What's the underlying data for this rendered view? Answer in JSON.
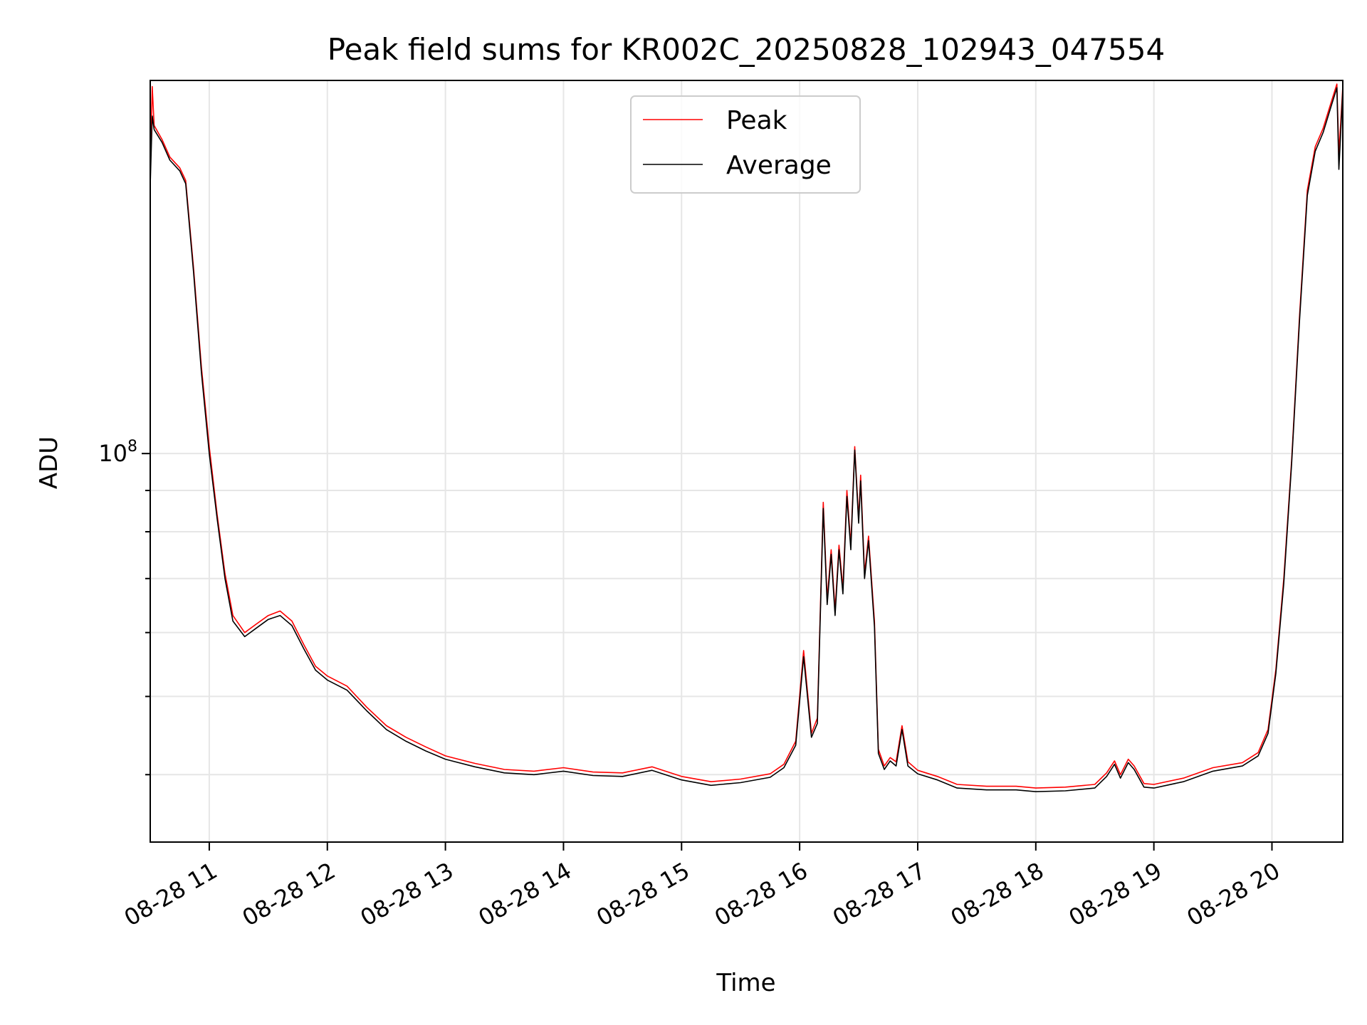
{
  "chart_data": {
    "type": "line",
    "title": "Peak field sums for KR002C_20250828_102943_047554",
    "xlabel": "Time",
    "ylabel": "ADU",
    "yscale": "log",
    "y_tick_major": {
      "label_base": "10",
      "label_exp": "8",
      "value": 100000000
    },
    "y_minor_ticks": [
      40000000,
      50000000,
      60000000,
      70000000,
      80000000,
      90000000
    ],
    "xlim": [
      "2025-08-28 10:30",
      "2025-08-28 20:36"
    ],
    "ylim": [
      33000000,
      290000000
    ],
    "x_ticks": [
      {
        "value": "2025-08-28 11:00",
        "label": "08-28 11"
      },
      {
        "value": "2025-08-28 12:00",
        "label": "08-28 12"
      },
      {
        "value": "2025-08-28 13:00",
        "label": "08-28 13"
      },
      {
        "value": "2025-08-28 14:00",
        "label": "08-28 14"
      },
      {
        "value": "2025-08-28 15:00",
        "label": "08-28 15"
      },
      {
        "value": "2025-08-28 16:00",
        "label": "08-28 16"
      },
      {
        "value": "2025-08-28 17:00",
        "label": "08-28 17"
      },
      {
        "value": "2025-08-28 18:00",
        "label": "08-28 18"
      },
      {
        "value": "2025-08-28 19:00",
        "label": "08-28 19"
      },
      {
        "value": "2025-08-28 20:00",
        "label": "08-28 20"
      }
    ],
    "grid": true,
    "legend_position": "top-center",
    "series": [
      {
        "name": "Peak",
        "color": "#ff0000",
        "points": [
          [
            "2025-08-28 10:30",
            220000000
          ],
          [
            "2025-08-28 10:31",
            285000000
          ],
          [
            "2025-08-28 10:32",
            255000000
          ],
          [
            "2025-08-28 10:36",
            245000000
          ],
          [
            "2025-08-28 10:40",
            233000000
          ],
          [
            "2025-08-28 10:45",
            226000000
          ],
          [
            "2025-08-28 10:48",
            218000000
          ],
          [
            "2025-08-28 10:52",
            170000000
          ],
          [
            "2025-08-28 10:56",
            128000000
          ],
          [
            "2025-08-28 11:00",
            102000000
          ],
          [
            "2025-08-28 11:04",
            84000000
          ],
          [
            "2025-08-28 11:08",
            71000000
          ],
          [
            "2025-08-28 11:12",
            63000000
          ],
          [
            "2025-08-28 11:18",
            60000000
          ],
          [
            "2025-08-28 11:24",
            61500000
          ],
          [
            "2025-08-28 11:30",
            63000000
          ],
          [
            "2025-08-28 11:36",
            63800000
          ],
          [
            "2025-08-28 11:42",
            62000000
          ],
          [
            "2025-08-28 11:48",
            58000000
          ],
          [
            "2025-08-28 11:54",
            54500000
          ],
          [
            "2025-08-28 12:00",
            53000000
          ],
          [
            "2025-08-28 12:10",
            51500000
          ],
          [
            "2025-08-28 12:20",
            48500000
          ],
          [
            "2025-08-28 12:30",
            46000000
          ],
          [
            "2025-08-28 12:40",
            44500000
          ],
          [
            "2025-08-28 12:50",
            43300000
          ],
          [
            "2025-08-28 13:00",
            42200000
          ],
          [
            "2025-08-28 13:15",
            41300000
          ],
          [
            "2025-08-28 13:30",
            40600000
          ],
          [
            "2025-08-28 13:45",
            40400000
          ],
          [
            "2025-08-28 14:00",
            40800000
          ],
          [
            "2025-08-28 14:15",
            40300000
          ],
          [
            "2025-08-28 14:30",
            40200000
          ],
          [
            "2025-08-28 14:45",
            40900000
          ],
          [
            "2025-08-28 15:00",
            39800000
          ],
          [
            "2025-08-28 15:15",
            39200000
          ],
          [
            "2025-08-28 15:30",
            39500000
          ],
          [
            "2025-08-28 15:45",
            40100000
          ],
          [
            "2025-08-28 15:52",
            41200000
          ],
          [
            "2025-08-28 15:58",
            44000000
          ],
          [
            "2025-08-28 16:02",
            57000000
          ],
          [
            "2025-08-28 16:06",
            45000000
          ],
          [
            "2025-08-28 16:09",
            47000000
          ],
          [
            "2025-08-28 16:12",
            87000000
          ],
          [
            "2025-08-28 16:14",
            66000000
          ],
          [
            "2025-08-28 16:16",
            76000000
          ],
          [
            "2025-08-28 16:18",
            64000000
          ],
          [
            "2025-08-28 16:20",
            77000000
          ],
          [
            "2025-08-28 16:22",
            68000000
          ],
          [
            "2025-08-28 16:24",
            90000000
          ],
          [
            "2025-08-28 16:26",
            77000000
          ],
          [
            "2025-08-28 16:28",
            102000000
          ],
          [
            "2025-08-28 16:30",
            83000000
          ],
          [
            "2025-08-28 16:31",
            94000000
          ],
          [
            "2025-08-28 16:33",
            71000000
          ],
          [
            "2025-08-28 16:35",
            79000000
          ],
          [
            "2025-08-28 16:38",
            62000000
          ],
          [
            "2025-08-28 16:40",
            43000000
          ],
          [
            "2025-08-28 16:43",
            41000000
          ],
          [
            "2025-08-28 16:46",
            42000000
          ],
          [
            "2025-08-28 16:49",
            41500000
          ],
          [
            "2025-08-28 16:52",
            46000000
          ],
          [
            "2025-08-28 16:55",
            41500000
          ],
          [
            "2025-08-28 17:00",
            40500000
          ],
          [
            "2025-08-28 17:10",
            39800000
          ],
          [
            "2025-08-28 17:20",
            38900000
          ],
          [
            "2025-08-28 17:35",
            38700000
          ],
          [
            "2025-08-28 17:50",
            38700000
          ],
          [
            "2025-08-28 18:00",
            38500000
          ],
          [
            "2025-08-28 18:15",
            38600000
          ],
          [
            "2025-08-28 18:30",
            38900000
          ],
          [
            "2025-08-28 18:36",
            40200000
          ],
          [
            "2025-08-28 18:40",
            41600000
          ],
          [
            "2025-08-28 18:43",
            40000000
          ],
          [
            "2025-08-28 18:47",
            41800000
          ],
          [
            "2025-08-28 18:50",
            41000000
          ],
          [
            "2025-08-28 18:55",
            39000000
          ],
          [
            "2025-08-28 19:00",
            38900000
          ],
          [
            "2025-08-28 19:15",
            39600000
          ],
          [
            "2025-08-28 19:30",
            40800000
          ],
          [
            "2025-08-28 19:45",
            41400000
          ],
          [
            "2025-08-28 19:53",
            42600000
          ],
          [
            "2025-08-28 19:58",
            45500000
          ],
          [
            "2025-08-28 20:02",
            54000000
          ],
          [
            "2025-08-28 20:06",
            70000000
          ],
          [
            "2025-08-28 20:10",
            98000000
          ],
          [
            "2025-08-28 20:14",
            148000000
          ],
          [
            "2025-08-28 20:18",
            212000000
          ],
          [
            "2025-08-28 20:22",
            240000000
          ],
          [
            "2025-08-28 20:26",
            253000000
          ],
          [
            "2025-08-28 20:30",
            272000000
          ],
          [
            "2025-08-28 20:33",
            287000000
          ],
          [
            "2025-08-28 20:34",
            235000000
          ],
          [
            "2025-08-28 20:36",
            285000000
          ]
        ]
      },
      {
        "name": "Average",
        "color": "#000000",
        "points": [
          [
            "2025-08-28 10:30",
            215000000
          ],
          [
            "2025-08-28 10:31",
            262000000
          ],
          [
            "2025-08-28 10:32",
            252000000
          ],
          [
            "2025-08-28 10:36",
            243000000
          ],
          [
            "2025-08-28 10:40",
            231000000
          ],
          [
            "2025-08-28 10:45",
            224000000
          ],
          [
            "2025-08-28 10:48",
            216000000
          ],
          [
            "2025-08-28 10:52",
            168000000
          ],
          [
            "2025-08-28 10:56",
            126000000
          ],
          [
            "2025-08-28 11:00",
            100000000
          ],
          [
            "2025-08-28 11:04",
            83000000
          ],
          [
            "2025-08-28 11:08",
            70000000
          ],
          [
            "2025-08-28 11:12",
            62000000
          ],
          [
            "2025-08-28 11:18",
            59300000
          ],
          [
            "2025-08-28 11:24",
            60800000
          ],
          [
            "2025-08-28 11:30",
            62300000
          ],
          [
            "2025-08-28 11:36",
            63000000
          ],
          [
            "2025-08-28 11:42",
            61200000
          ],
          [
            "2025-08-28 11:48",
            57300000
          ],
          [
            "2025-08-28 11:54",
            53900000
          ],
          [
            "2025-08-28 12:00",
            52400000
          ],
          [
            "2025-08-28 12:10",
            50900000
          ],
          [
            "2025-08-28 12:20",
            48000000
          ],
          [
            "2025-08-28 12:30",
            45500000
          ],
          [
            "2025-08-28 12:40",
            44000000
          ],
          [
            "2025-08-28 12:50",
            42800000
          ],
          [
            "2025-08-28 13:00",
            41800000
          ],
          [
            "2025-08-28 13:15",
            40900000
          ],
          [
            "2025-08-28 13:30",
            40200000
          ],
          [
            "2025-08-28 13:45",
            40000000
          ],
          [
            "2025-08-28 14:00",
            40400000
          ],
          [
            "2025-08-28 14:15",
            39900000
          ],
          [
            "2025-08-28 14:30",
            39800000
          ],
          [
            "2025-08-28 14:45",
            40500000
          ],
          [
            "2025-08-28 15:00",
            39400000
          ],
          [
            "2025-08-28 15:15",
            38800000
          ],
          [
            "2025-08-28 15:30",
            39100000
          ],
          [
            "2025-08-28 15:45",
            39700000
          ],
          [
            "2025-08-28 15:52",
            40800000
          ],
          [
            "2025-08-28 15:58",
            43500000
          ],
          [
            "2025-08-28 16:02",
            56000000
          ],
          [
            "2025-08-28 16:06",
            44500000
          ],
          [
            "2025-08-28 16:09",
            46300000
          ],
          [
            "2025-08-28 16:12",
            85500000
          ],
          [
            "2025-08-28 16:14",
            65000000
          ],
          [
            "2025-08-28 16:16",
            75000000
          ],
          [
            "2025-08-28 16:18",
            63000000
          ],
          [
            "2025-08-28 16:20",
            76000000
          ],
          [
            "2025-08-28 16:22",
            67000000
          ],
          [
            "2025-08-28 16:24",
            88500000
          ],
          [
            "2025-08-28 16:26",
            76000000
          ],
          [
            "2025-08-28 16:28",
            101000000
          ],
          [
            "2025-08-28 16:30",
            82000000
          ],
          [
            "2025-08-28 16:31",
            92500000
          ],
          [
            "2025-08-28 16:33",
            70000000
          ],
          [
            "2025-08-28 16:35",
            78000000
          ],
          [
            "2025-08-28 16:38",
            61000000
          ],
          [
            "2025-08-28 16:40",
            42500000
          ],
          [
            "2025-08-28 16:43",
            40600000
          ],
          [
            "2025-08-28 16:46",
            41600000
          ],
          [
            "2025-08-28 16:49",
            41000000
          ],
          [
            "2025-08-28 16:52",
            45500000
          ],
          [
            "2025-08-28 16:55",
            41000000
          ],
          [
            "2025-08-28 17:00",
            40100000
          ],
          [
            "2025-08-28 17:10",
            39400000
          ],
          [
            "2025-08-28 17:20",
            38500000
          ],
          [
            "2025-08-28 17:35",
            38300000
          ],
          [
            "2025-08-28 17:50",
            38300000
          ],
          [
            "2025-08-28 18:00",
            38100000
          ],
          [
            "2025-08-28 18:15",
            38200000
          ],
          [
            "2025-08-28 18:30",
            38500000
          ],
          [
            "2025-08-28 18:36",
            39800000
          ],
          [
            "2025-08-28 18:40",
            41200000
          ],
          [
            "2025-08-28 18:43",
            39600000
          ],
          [
            "2025-08-28 18:47",
            41400000
          ],
          [
            "2025-08-28 18:50",
            40600000
          ],
          [
            "2025-08-28 18:55",
            38600000
          ],
          [
            "2025-08-28 19:00",
            38500000
          ],
          [
            "2025-08-28 19:15",
            39200000
          ],
          [
            "2025-08-28 19:30",
            40400000
          ],
          [
            "2025-08-28 19:45",
            41000000
          ],
          [
            "2025-08-28 19:53",
            42200000
          ],
          [
            "2025-08-28 19:58",
            45000000
          ],
          [
            "2025-08-28 20:02",
            53400000
          ],
          [
            "2025-08-28 20:06",
            69000000
          ],
          [
            "2025-08-28 20:10",
            97000000
          ],
          [
            "2025-08-28 20:14",
            146000000
          ],
          [
            "2025-08-28 20:18",
            209000000
          ],
          [
            "2025-08-28 20:22",
            237000000
          ],
          [
            "2025-08-28 20:26",
            250000000
          ],
          [
            "2025-08-28 20:30",
            269000000
          ],
          [
            "2025-08-28 20:33",
            284000000
          ],
          [
            "2025-08-28 20:34",
            225000000
          ],
          [
            "2025-08-28 20:36",
            282000000
          ]
        ]
      }
    ]
  }
}
